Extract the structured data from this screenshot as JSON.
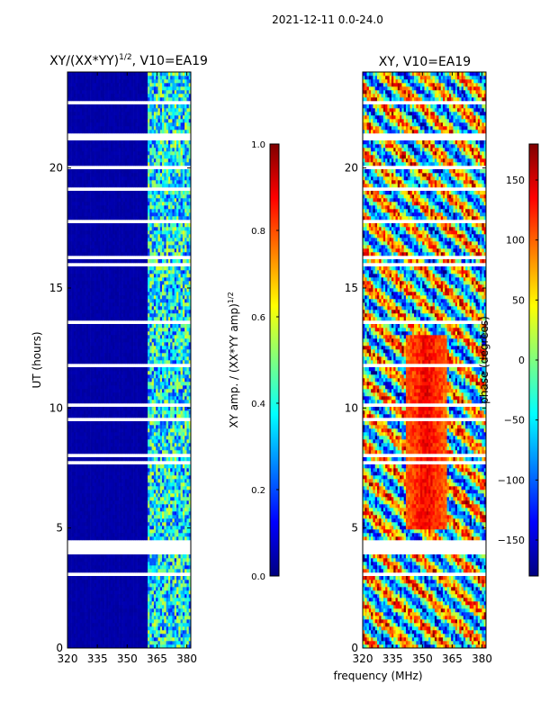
{
  "suptitle": "2021-12-11 0.0-24.0",
  "xlabel": "frequency (MHz)",
  "colors": {
    "jet": [
      "#00007f",
      "#0000ff",
      "#007fff",
      "#00ffff",
      "#7fff7f",
      "#ffff00",
      "#ff7f00",
      "#ff0000",
      "#7f0000"
    ]
  },
  "chart_data": [
    {
      "type": "heatmap",
      "title_main": "XY/(XX*YY)",
      "title_sup": "1/2",
      "title_rest": ", V10=EA19",
      "ylabel": "UT (hours)",
      "xlim": [
        320,
        382
      ],
      "ylim": [
        0,
        24
      ],
      "xticks": [
        "320",
        "335",
        "350",
        "365",
        "380"
      ],
      "xtick_values": [
        320,
        335,
        350,
        365,
        380
      ],
      "yticks": [
        "0",
        "5",
        "10",
        "15",
        "20"
      ],
      "ytick_values": [
        0,
        5,
        10,
        15,
        20
      ],
      "colorbar": {
        "label_main": "XY amp. / (XX*YY amp)",
        "label_sup": "1/2",
        "range": [
          0.0,
          1.0
        ],
        "ticks": [
          "0.0",
          "0.2",
          "0.4",
          "0.6",
          "0.8",
          "1.0"
        ],
        "tick_values": [
          0.0,
          0.2,
          0.4,
          0.6,
          0.8,
          1.0
        ]
      },
      "description_bands": {
        "low_band_MHz": [
          320,
          360
        ],
        "low_band_value": 0.03,
        "high_band_MHz": [
          360,
          382
        ],
        "high_band_value_range": [
          0.15,
          0.6
        ]
      },
      "flagged_time_ranges_hours": [
        [
          3.9,
          4.5
        ],
        [
          21.2,
          21.4
        ],
        [
          19.9,
          20.1
        ]
      ]
    },
    {
      "type": "heatmap",
      "title": "XY, V10=EA19",
      "ylabel": "phase (degrees)",
      "xlim": [
        320,
        382
      ],
      "ylim": [
        0,
        24
      ],
      "xticks": [
        "320",
        "335",
        "350",
        "365",
        "380"
      ],
      "xtick_values": [
        320,
        335,
        350,
        365,
        380
      ],
      "yticks": [
        "0",
        "5",
        "10",
        "15",
        "20"
      ],
      "ytick_values": [
        0,
        5,
        10,
        15,
        20
      ],
      "colorbar": {
        "range": [
          -180,
          180
        ],
        "ticks": [
          "−150",
          "−100",
          "−50",
          "0",
          "50",
          "100",
          "150"
        ],
        "tick_values": [
          -150,
          -100,
          -50,
          0,
          50,
          100,
          150
        ]
      },
      "description_bands": {
        "phase_peak_deg": 140,
        "phase_peak_MHz": 352,
        "phase_peak_hours": [
          5,
          13
        ]
      },
      "flagged_time_ranges_hours": [
        [
          3.9,
          4.5
        ],
        [
          21.2,
          21.4
        ],
        [
          19.9,
          20.1
        ]
      ]
    }
  ]
}
